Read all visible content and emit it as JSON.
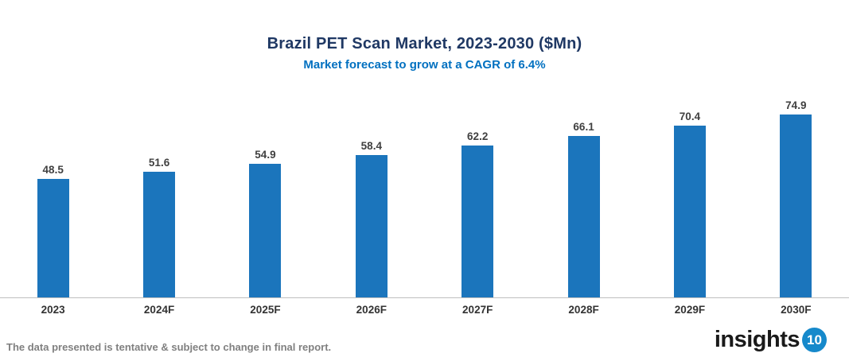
{
  "title": "Brazil PET Scan Market, 2023-2030 ($Mn)",
  "subtitle": "Market forecast to grow at a CAGR of 6.4%",
  "footer": {
    "disclaimer": "The data presented is tentative & subject to change in final report."
  },
  "logo": {
    "text": "insights",
    "badge": "10"
  },
  "colors": {
    "bar": "#1B75BC",
    "title": "#1F3864",
    "subtitle": "#0070C0",
    "axis_line": "#BFBFBF",
    "data_label": "#404040",
    "x_label": "#333333",
    "footer_text": "#808080",
    "logo_text": "#1A1A1A",
    "logo_badge": "#1689CB"
  },
  "chart_data": {
    "type": "bar",
    "title": "Brazil PET Scan Market, 2023-2030 ($Mn)",
    "subtitle": "Market forecast to grow at a CAGR of 6.4%",
    "categories": [
      "2023",
      "2024F",
      "2025F",
      "2026F",
      "2027F",
      "2028F",
      "2029F",
      "2030F"
    ],
    "values": [
      48.5,
      51.6,
      54.9,
      58.4,
      62.2,
      66.1,
      70.4,
      74.9
    ],
    "xlabel": "",
    "ylabel": "",
    "ylim": [
      0,
      90
    ],
    "grid": false,
    "legend": false,
    "data_labels": true,
    "y_axis_visible": false,
    "x_axis_line": true
  }
}
